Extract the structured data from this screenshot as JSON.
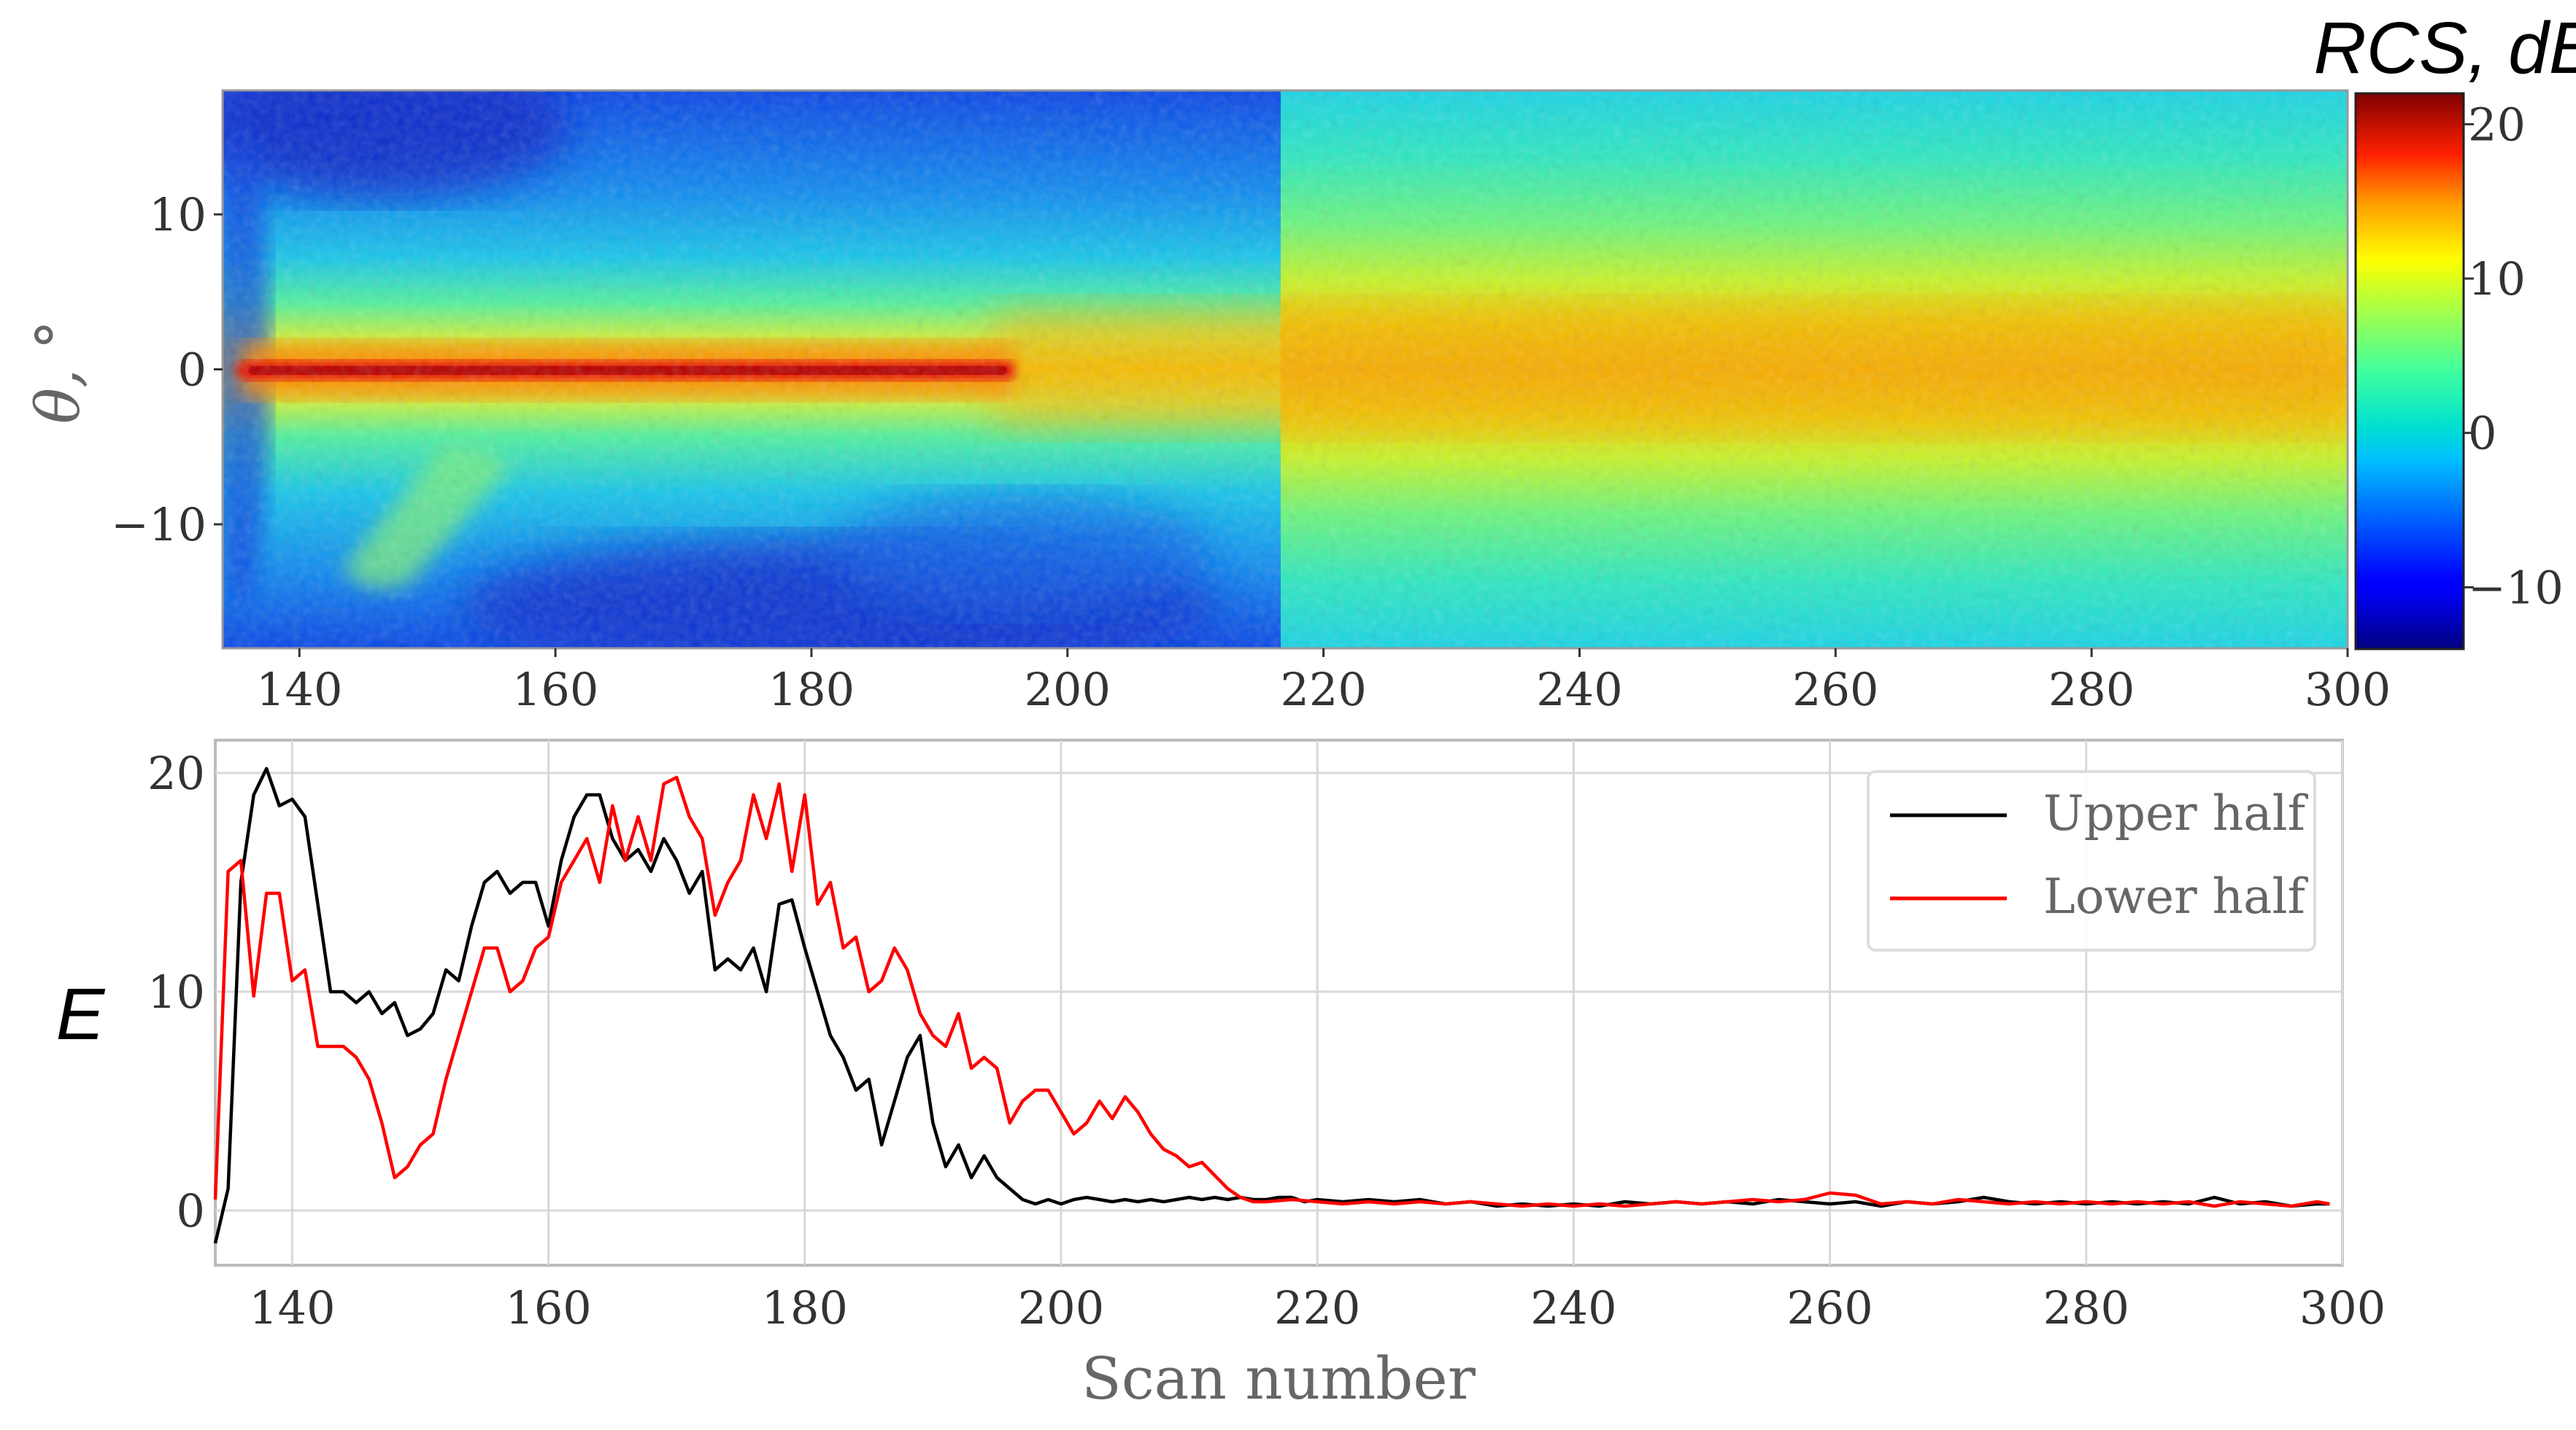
{
  "figure": {
    "description_domain": "radar cross section heatmap with derived energy curves"
  },
  "chart_data": [
    {
      "type": "heatmap",
      "title": "",
      "xlabel": "",
      "ylabel": "θ, °",
      "xlim": [
        134,
        300
      ],
      "ylim": [
        -18,
        18
      ],
      "x_ticks": [
        140,
        160,
        180,
        200,
        220,
        240,
        260,
        280,
        300
      ],
      "y_ticks": [
        10,
        0,
        -10
      ],
      "y_tick_labels": [
        "10",
        "0",
        "−10"
      ],
      "colorbar": {
        "label": "RCS, dB",
        "range": [
          -14,
          22
        ],
        "ticks": [
          20,
          10,
          0,
          -10
        ],
        "tick_labels": [
          "20",
          "10",
          "0",
          "−10"
        ],
        "colormap": "jet"
      },
      "regions": [
        {
          "x_range": [
            135,
            196
          ],
          "theta_center": 0,
          "peak_rcs_db": 22,
          "width_deg": 1.5,
          "note": "narrow strong central line"
        },
        {
          "x_range": [
            135,
            200
          ],
          "theta_center": 0,
          "peak_rcs_db": 10,
          "width_deg": 6
        },
        {
          "x_range": [
            196,
            300
          ],
          "theta_center": 0,
          "peak_rcs_db": 12,
          "width_deg": 12
        },
        {
          "x_range": [
            134,
            212
          ],
          "theta_range": [
            -18,
            -10
          ],
          "rcs_db": -8
        },
        {
          "x_range": [
            134,
            160
          ],
          "theta_range": [
            10,
            18
          ],
          "rcs_db": -9
        }
      ]
    },
    {
      "type": "line",
      "title": "",
      "xlabel": "Scan number",
      "ylabel": "E",
      "xlim": [
        134,
        300
      ],
      "ylim": [
        -2.5,
        21.5
      ],
      "x_ticks": [
        140,
        160,
        180,
        200,
        220,
        240,
        260,
        280,
        300
      ],
      "y_ticks": [
        20,
        10,
        0
      ],
      "grid": true,
      "legend_position": "top-right",
      "series": [
        {
          "name": "Upper half",
          "color": "#000000",
          "x": [
            134,
            135,
            136,
            137,
            138,
            139,
            140,
            141,
            142,
            143,
            144,
            145,
            146,
            147,
            148,
            149,
            150,
            151,
            152,
            153,
            154,
            155,
            156,
            157,
            158,
            159,
            160,
            161,
            162,
            163,
            164,
            165,
            166,
            167,
            168,
            169,
            170,
            171,
            172,
            173,
            174,
            175,
            176,
            177,
            178,
            179,
            180,
            181,
            182,
            183,
            184,
            185,
            186,
            187,
            188,
            189,
            190,
            191,
            192,
            193,
            194,
            195,
            196,
            197,
            198,
            199,
            200,
            201,
            202,
            203,
            204,
            205,
            206,
            207,
            208,
            209,
            210,
            211,
            212,
            213,
            214,
            215,
            216,
            217,
            218,
            219,
            220,
            222,
            224,
            226,
            228,
            230,
            232,
            234,
            236,
            238,
            240,
            242,
            244,
            246,
            248,
            250,
            252,
            254,
            256,
            258,
            260,
            262,
            264,
            266,
            268,
            270,
            272,
            274,
            276,
            278,
            280,
            282,
            284,
            286,
            288,
            290,
            292,
            294,
            296,
            298,
            299
          ],
          "y": [
            -1.5,
            1,
            15,
            19,
            20.2,
            18.5,
            18.8,
            18,
            14,
            10,
            10,
            9.5,
            10,
            9,
            9.5,
            8,
            8.3,
            9,
            11,
            10.5,
            13,
            15,
            15.5,
            14.5,
            15,
            15,
            13,
            16,
            18,
            19,
            19,
            17,
            16,
            16.5,
            15.5,
            17,
            16,
            14.5,
            15.5,
            11,
            11.5,
            11,
            12,
            10,
            14,
            14.2,
            12,
            10,
            8,
            7,
            5.5,
            6,
            3,
            5,
            7,
            8,
            4,
            2,
            3,
            1.5,
            2.5,
            1.5,
            1,
            0.5,
            0.3,
            0.5,
            0.3,
            0.5,
            0.6,
            0.5,
            0.4,
            0.5,
            0.4,
            0.5,
            0.4,
            0.5,
            0.6,
            0.5,
            0.6,
            0.5,
            0.6,
            0.5,
            0.5,
            0.6,
            0.6,
            0.4,
            0.5,
            0.4,
            0.5,
            0.4,
            0.5,
            0.3,
            0.4,
            0.2,
            0.3,
            0.2,
            0.3,
            0.2,
            0.4,
            0.3,
            0.4,
            0.3,
            0.4,
            0.3,
            0.5,
            0.4,
            0.3,
            0.4,
            0.2,
            0.4,
            0.3,
            0.4,
            0.6,
            0.4,
            0.3,
            0.4,
            0.3,
            0.4,
            0.3,
            0.4,
            0.3,
            0.6,
            0.3,
            0.4,
            0.2,
            0.3,
            0.3
          ]
        },
        {
          "name": "Lower half",
          "color": "#ff0000",
          "x": [
            134,
            135,
            136,
            137,
            138,
            139,
            140,
            141,
            142,
            143,
            144,
            145,
            146,
            147,
            148,
            149,
            150,
            151,
            152,
            153,
            154,
            155,
            156,
            157,
            158,
            159,
            160,
            161,
            162,
            163,
            164,
            165,
            166,
            167,
            168,
            169,
            170,
            171,
            172,
            173,
            174,
            175,
            176,
            177,
            178,
            179,
            180,
            181,
            182,
            183,
            184,
            185,
            186,
            187,
            188,
            189,
            190,
            191,
            192,
            193,
            194,
            195,
            196,
            197,
            198,
            199,
            200,
            201,
            202,
            203,
            204,
            205,
            206,
            207,
            208,
            209,
            210,
            211,
            212,
            213,
            214,
            215,
            216,
            218,
            220,
            222,
            224,
            226,
            228,
            230,
            232,
            234,
            236,
            238,
            240,
            242,
            244,
            246,
            248,
            250,
            252,
            254,
            256,
            258,
            260,
            262,
            264,
            266,
            268,
            270,
            272,
            274,
            276,
            278,
            280,
            282,
            284,
            286,
            288,
            290,
            292,
            294,
            296,
            298,
            299
          ],
          "y": [
            0.5,
            15.5,
            16,
            9.8,
            14.5,
            14.5,
            10.5,
            11,
            7.5,
            7.5,
            7.5,
            7,
            6,
            4,
            1.5,
            2,
            3,
            3.5,
            6,
            8,
            10,
            12,
            12,
            10,
            10.5,
            12,
            12.5,
            15,
            16,
            17,
            15,
            18.5,
            16,
            18,
            16,
            19.5,
            19.8,
            18,
            17,
            13.5,
            15,
            16,
            19,
            17,
            19.5,
            15.5,
            19,
            14,
            15,
            12,
            12.5,
            10,
            10.5,
            12,
            11,
            9,
            8,
            7.5,
            9,
            6.5,
            7,
            6.5,
            4,
            5,
            5.5,
            5.5,
            4.5,
            3.5,
            4,
            5,
            4.2,
            5.2,
            4.5,
            3.5,
            2.8,
            2.5,
            2,
            2.2,
            1.6,
            1,
            0.6,
            0.4,
            0.4,
            0.5,
            0.4,
            0.3,
            0.4,
            0.3,
            0.4,
            0.3,
            0.4,
            0.3,
            0.2,
            0.3,
            0.2,
            0.3,
            0.2,
            0.3,
            0.4,
            0.3,
            0.4,
            0.5,
            0.4,
            0.5,
            0.8,
            0.7,
            0.3,
            0.4,
            0.3,
            0.5,
            0.4,
            0.3,
            0.4,
            0.3,
            0.4,
            0.3,
            0.4,
            0.3,
            0.4,
            0.2,
            0.4,
            0.3,
            0.2,
            0.4,
            0.3
          ]
        }
      ]
    }
  ]
}
